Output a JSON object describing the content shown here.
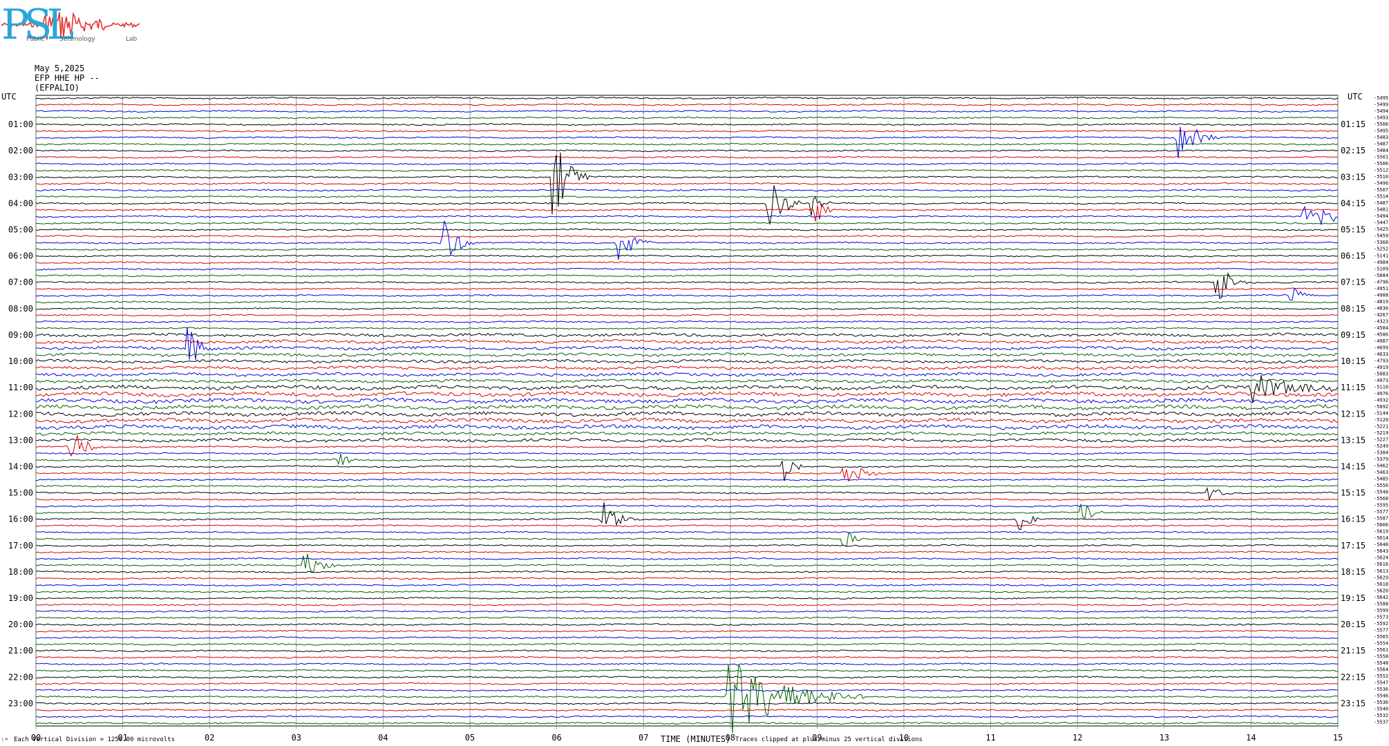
{
  "logo": {
    "letters": "PSL",
    "sub_left": "Public",
    "sub_mid": "Seismology",
    "sub_right": "Lab",
    "colors": {
      "letters": "#29a8d8",
      "wave": "#e83030"
    }
  },
  "header": {
    "date": "May 5,2025",
    "channel": "EFP HHE HP --",
    "station": "(EFPALIO)"
  },
  "footer": {
    "left_note": "Each Vertical Division = 1250.00 microvolts",
    "xlabel": "TIME (MINUTES)",
    "right_note": "Traces clipped at plus/minus 25 vertical divisions",
    "corner_mark": "ᴸᴹ"
  },
  "chart_data": {
    "type": "line",
    "title": "",
    "xlabel": "TIME (MINUTES)",
    "ylabel": "",
    "x_ticks": [
      "00",
      "01",
      "02",
      "03",
      "04",
      "05",
      "06",
      "07",
      "08",
      "09",
      "10",
      "11",
      "12",
      "13",
      "14",
      "15"
    ],
    "xlim": [
      0,
      15
    ],
    "grid": true,
    "left_axis_unit": "UTC",
    "right_axis_unit": "UTC",
    "left_hour_labels": [
      "01:00",
      "02:00",
      "03:00",
      "04:00",
      "05:00",
      "06:00",
      "07:00",
      "08:00",
      "09:00",
      "10:00",
      "11:00",
      "12:00",
      "13:00",
      "14:00",
      "15:00",
      "16:00",
      "17:00",
      "18:00",
      "19:00",
      "20:00",
      "21:00",
      "22:00",
      "23:00"
    ],
    "right_hour_labels": [
      "01:15",
      "02:15",
      "03:15",
      "04:15",
      "05:15",
      "06:15",
      "07:15",
      "08:15",
      "09:15",
      "10:15",
      "11:15",
      "12:15",
      "13:15",
      "14:15",
      "15:15",
      "16:15",
      "17:15",
      "18:15",
      "19:15",
      "20:15",
      "21:15",
      "22:15",
      "23:15"
    ],
    "trace_colors": [
      "#000000",
      "#e00000",
      "#0000e0",
      "#006000"
    ],
    "trace_count": 96,
    "minutes_per_trace": 15,
    "right_offsets": [
      "-5495",
      "-5499",
      "-5494",
      "-5493",
      "-5506",
      "-5495",
      "-5483",
      "-5487",
      "-5484",
      "-5501",
      "-5506",
      "-5512",
      "-5510",
      "-5496",
      "-5507",
      "-5514",
      "-5487",
      "-5481",
      "-5494",
      "-5447",
      "-5425",
      "-5459",
      "-5368",
      "-5252",
      "-5141",
      "-4984",
      "-5109",
      "-5084",
      "-4796",
      "-4951",
      "-4988",
      "-4819",
      "-4836",
      "-4267",
      "-4323",
      "-4584",
      "-4586",
      "-4987",
      "-4699",
      "-4633",
      "-4793",
      "-4919",
      "-5083",
      "-4973",
      "-5110",
      "-4976",
      "-4932",
      "-5092",
      "-5144",
      "-5120",
      "-5221",
      "-5219",
      "-5227",
      "-5249",
      "-5384",
      "-5379",
      "-5462",
      "-5463",
      "-5485",
      "-5556",
      "-5548",
      "-5568",
      "-5595",
      "-5577",
      "-5587",
      "-5606",
      "-5619",
      "-5614",
      "-5648",
      "-5643",
      "-5624",
      "-5616",
      "-5613",
      "-5629",
      "-5618",
      "-5620",
      "-5642",
      "-5588",
      "-5599",
      "-5573",
      "-5592",
      "-5577",
      "-5565",
      "-5554",
      "-5561",
      "-5558",
      "-5548",
      "-5564",
      "-5552",
      "-5547",
      "-5536",
      "-5546",
      "-5536",
      "-5540",
      "-5532",
      "-5537"
    ],
    "events": [
      {
        "trace": 6,
        "minute": 13.15,
        "amplitude": 3.5,
        "duration": 0.5
      },
      {
        "trace": 12,
        "minute": 5.95,
        "amplitude": 6.0,
        "duration": 0.45
      },
      {
        "trace": 16,
        "minute": 8.45,
        "amplitude": 3.5,
        "duration": 0.45
      },
      {
        "trace": 16,
        "minute": 8.95,
        "amplitude": 2.2,
        "duration": 0.2
      },
      {
        "trace": 17,
        "minute": 9.0,
        "amplitude": 2.0,
        "duration": 0.2
      },
      {
        "trace": 18,
        "minute": 14.6,
        "amplitude": 4.0,
        "duration": 0.5
      },
      {
        "trace": 22,
        "minute": 4.7,
        "amplitude": 3.5,
        "duration": 0.35
      },
      {
        "trace": 22,
        "minute": 6.7,
        "amplitude": 3.0,
        "duration": 0.4
      },
      {
        "trace": 28,
        "minute": 13.6,
        "amplitude": 3.2,
        "duration": 0.35
      },
      {
        "trace": 30,
        "minute": 14.45,
        "amplitude": 1.5,
        "duration": 0.3
      },
      {
        "trace": 38,
        "minute": 1.75,
        "amplitude": 3.5,
        "duration": 0.3
      },
      {
        "trace": 44,
        "minute": 14.0,
        "amplitude": 2.5,
        "duration": 1.2
      },
      {
        "trace": 53,
        "minute": 0.4,
        "amplitude": 2.3,
        "duration": 0.4
      },
      {
        "trace": 55,
        "minute": 3.45,
        "amplitude": 2.2,
        "duration": 0.25
      },
      {
        "trace": 56,
        "minute": 8.6,
        "amplitude": 2.5,
        "duration": 0.3
      },
      {
        "trace": 57,
        "minute": 9.3,
        "amplitude": 2.0,
        "duration": 0.5
      },
      {
        "trace": 60,
        "minute": 13.5,
        "amplitude": 1.2,
        "duration": 0.3
      },
      {
        "trace": 64,
        "minute": 6.5,
        "amplitude": 3.0,
        "duration": 0.4
      },
      {
        "trace": 64,
        "minute": 11.3,
        "amplitude": 2.5,
        "duration": 0.3
      },
      {
        "trace": 63,
        "minute": 12.05,
        "amplitude": 2.0,
        "duration": 0.25
      },
      {
        "trace": 67,
        "minute": 9.3,
        "amplitude": 1.5,
        "duration": 0.3
      },
      {
        "trace": 71,
        "minute": 3.1,
        "amplitude": 2.3,
        "duration": 0.4
      },
      {
        "trace": 91,
        "minute": 7.95,
        "amplitude": 6.5,
        "duration": 1.6
      }
    ]
  }
}
